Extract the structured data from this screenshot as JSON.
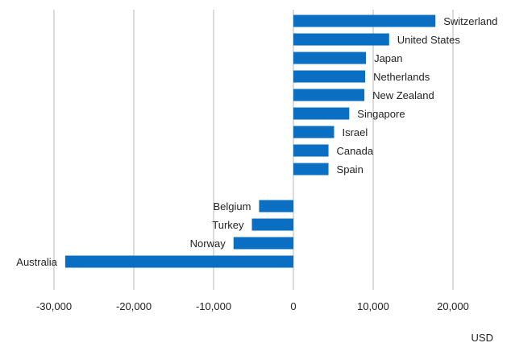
{
  "chart_data": {
    "type": "bar",
    "orientation": "horizontal",
    "categories": [
      "Switzerland",
      "United States",
      "Japan",
      "Netherlands",
      "New Zealand",
      "Singapore",
      "Israel",
      "Canada",
      "Spain",
      "",
      "Belgium",
      "Turkey",
      "Norway",
      "Australia"
    ],
    "values": [
      17800,
      12000,
      9100,
      9000,
      8900,
      7000,
      5100,
      4400,
      4400,
      null,
      -4300,
      -5200,
      -7500,
      -28600
    ],
    "xlabel": "USD",
    "xlim": [
      -30000,
      20000
    ],
    "xticks": [
      -30000,
      -20000,
      -10000,
      0,
      10000,
      20000
    ],
    "xtick_labels": [
      "-30,000",
      "-20,000",
      "-10,000",
      "0",
      "10,000",
      "20,000"
    ],
    "grid": "vertical",
    "bar_color": "#0a6fc2",
    "grid_color": "#cfcfcf"
  }
}
